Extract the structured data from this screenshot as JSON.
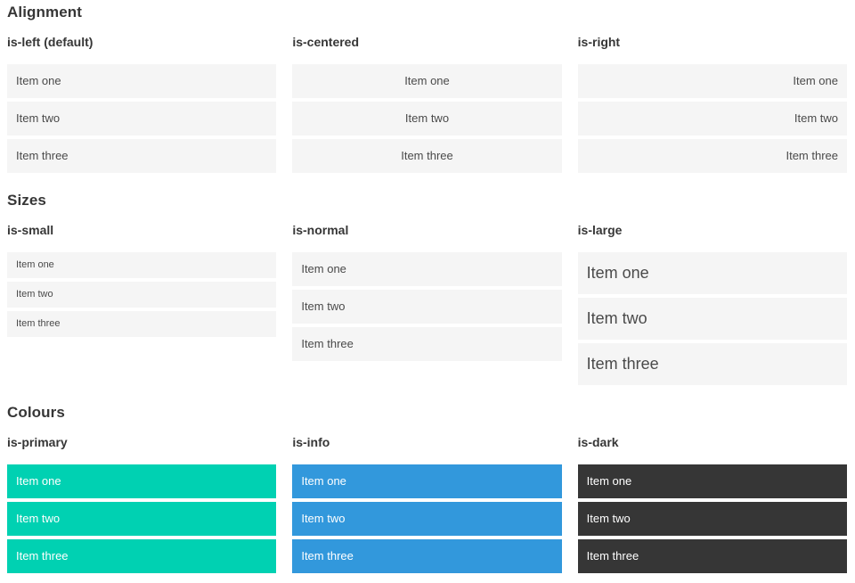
{
  "sections": [
    {
      "title": "Alignment",
      "columns": [
        {
          "heading": "is-left (default)",
          "items": [
            "Item one",
            "Item two",
            "Item three"
          ]
        },
        {
          "heading": "is-centered",
          "items": [
            "Item one",
            "Item two",
            "Item three"
          ]
        },
        {
          "heading": "is-right",
          "items": [
            "Item one",
            "Item two",
            "Item three"
          ]
        }
      ]
    },
    {
      "title": "Sizes",
      "columns": [
        {
          "heading": "is-small",
          "items": [
            "Item one",
            "Item two",
            "Item three"
          ]
        },
        {
          "heading": "is-normal",
          "items": [
            "Item one",
            "Item two",
            "Item three"
          ]
        },
        {
          "heading": "is-large",
          "items": [
            "Item one",
            "Item two",
            "Item three"
          ]
        }
      ]
    },
    {
      "title": "Colours",
      "columns": [
        {
          "heading": "is-primary",
          "items": [
            "Item one",
            "Item two",
            "Item three"
          ]
        },
        {
          "heading": "is-info",
          "items": [
            "Item one",
            "Item two",
            "Item three"
          ]
        },
        {
          "heading": "is-dark",
          "items": [
            "Item one",
            "Item two",
            "Item three"
          ]
        }
      ]
    }
  ],
  "colors": {
    "primary": "#00d1b2",
    "info": "#3298dc",
    "dark": "#363636",
    "item_bg": "#f5f5f5",
    "item_text": "#4a4a4a",
    "heading_text": "#363636"
  }
}
